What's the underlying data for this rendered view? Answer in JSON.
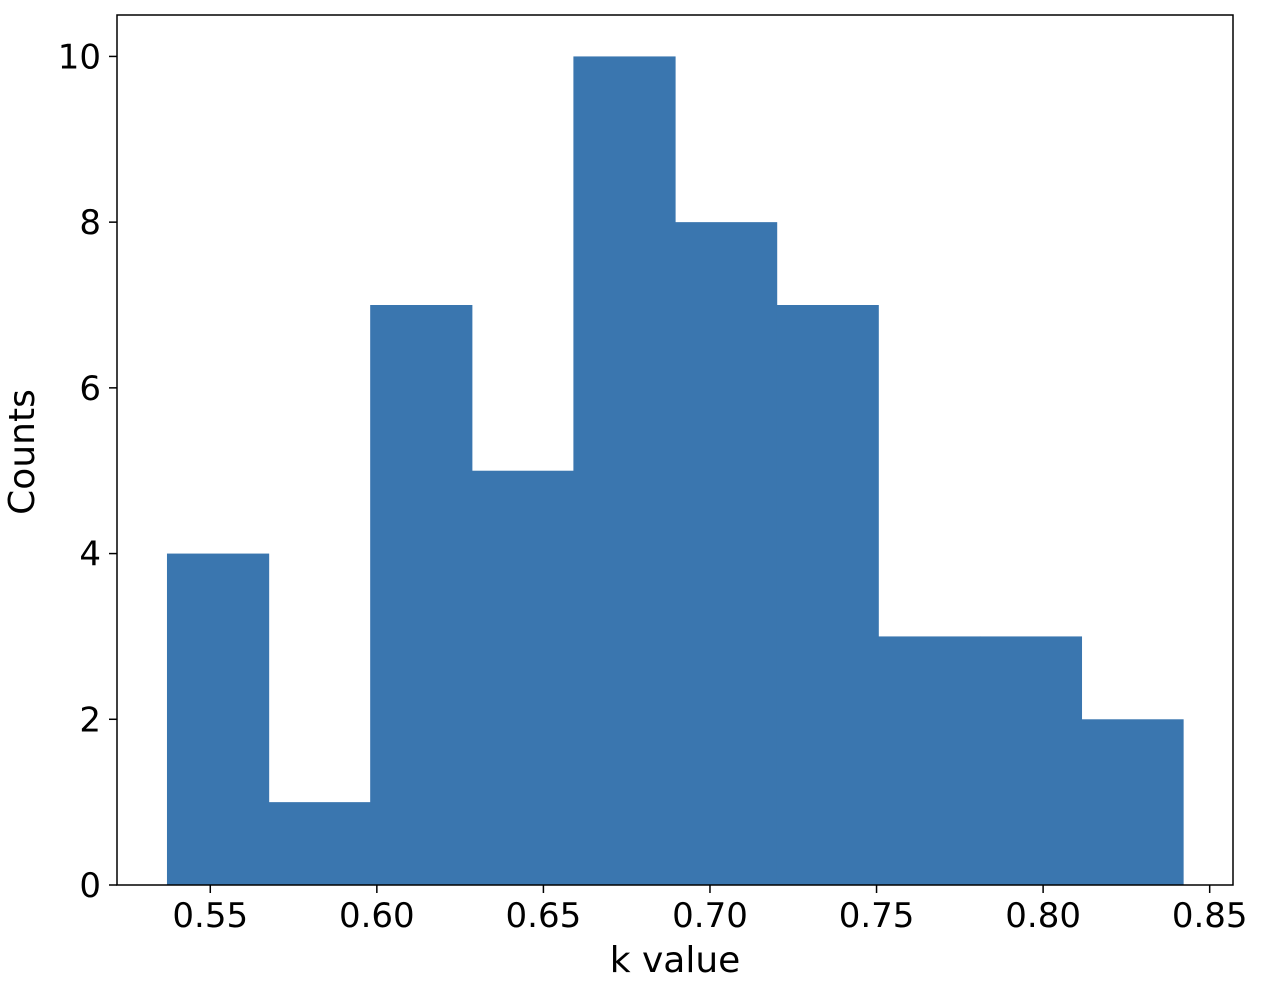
{
  "chart_data": {
    "type": "bar",
    "subtype": "histogram",
    "title": "",
    "xlabel": "k value",
    "ylabel": "Counts",
    "bin_edges": [
      0.537,
      0.5675,
      0.598,
      0.6285,
      0.659,
      0.6895,
      0.72,
      0.7505,
      0.781,
      0.8115,
      0.842
    ],
    "values": [
      4,
      1,
      7,
      5,
      10,
      8,
      7,
      3,
      3,
      2
    ],
    "xlim": [
      0.522,
      0.857
    ],
    "ylim": [
      0,
      10.5
    ],
    "xticks": [
      0.55,
      0.6,
      0.65,
      0.7,
      0.75,
      0.8,
      0.85
    ],
    "xtick_labels": [
      "0.55",
      "0.60",
      "0.65",
      "0.70",
      "0.75",
      "0.80",
      "0.85"
    ],
    "yticks": [
      0,
      2,
      4,
      6,
      8,
      10
    ],
    "ytick_labels": [
      "0",
      "2",
      "4",
      "6",
      "8",
      "10"
    ],
    "bar_color": "#3a76af",
    "grid": false,
    "legend": "none"
  }
}
